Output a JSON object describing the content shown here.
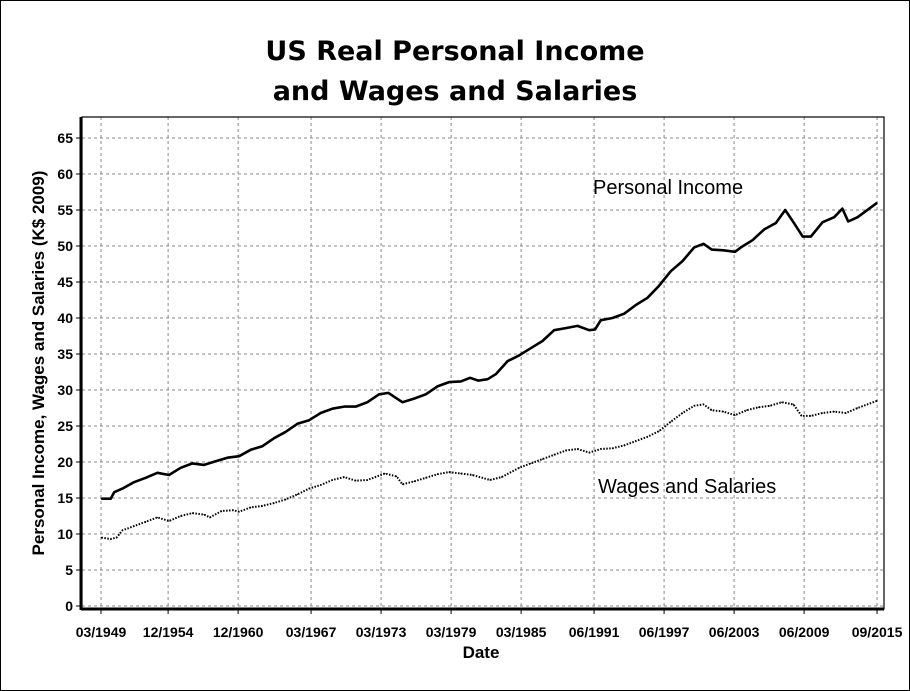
{
  "chart_data": {
    "type": "line",
    "title": [
      "US Real Personal Income",
      "and Wages and Salaries"
    ],
    "xlabel": "Date",
    "ylabel": "Personal Income, Wages and Salaries (K$ 2009)",
    "ylim": [
      0,
      65
    ],
    "xlim": [
      1949.17,
      2015.67
    ],
    "grid": true,
    "yticks": [
      0,
      5,
      10,
      15,
      20,
      25,
      30,
      35,
      40,
      45,
      50,
      55,
      60,
      65
    ],
    "xticks": [
      {
        "label": "03/1949",
        "t": 1949.17
      },
      {
        "label": "12/1954",
        "t": 1954.92
      },
      {
        "label": "12/1960",
        "t": 1960.92
      },
      {
        "label": "03/1967",
        "t": 1967.17
      },
      {
        "label": "03/1973",
        "t": 1973.17
      },
      {
        "label": "03/1979",
        "t": 1979.17
      },
      {
        "label": "03/1985",
        "t": 1985.17
      },
      {
        "label": "06/1991",
        "t": 1991.42
      },
      {
        "label": "06/1997",
        "t": 1997.42
      },
      {
        "label": "06/2003",
        "t": 2003.42
      },
      {
        "label": "06/2009",
        "t": 2009.42
      },
      {
        "label": "09/2015",
        "t": 2015.67
      }
    ],
    "series": [
      {
        "name": "Personal Income",
        "style": "solid",
        "x": [
          1949.2,
          1950,
          1950.3,
          1951,
          1952,
          1953,
          1954,
          1955,
          1956,
          1957,
          1958,
          1959,
          1960,
          1961,
          1962,
          1963,
          1964,
          1965,
          1966,
          1967,
          1968,
          1969,
          1970,
          1971,
          1972,
          1973,
          1973.8,
          1975,
          1976,
          1977,
          1978,
          1979,
          1980,
          1980.8,
          1981.5,
          1982.3,
          1983,
          1984,
          1985,
          1986,
          1987,
          1988,
          1989,
          1990,
          1991,
          1991.5,
          1992,
          1993,
          1994,
          1995,
          1996,
          1997,
          1998,
          1999,
          2000,
          2000.8,
          2001.5,
          2002.5,
          2003.5,
          2004,
          2005,
          2006,
          2007,
          2007.8,
          2008.5,
          2009.3,
          2010,
          2011,
          2012,
          2012.7,
          2013.2,
          2014,
          2015.67
        ],
        "y": [
          14.9,
          14.9,
          15.8,
          16.3,
          17.2,
          17.8,
          18.5,
          18.2,
          19.2,
          19.8,
          19.6,
          20.1,
          20.6,
          20.8,
          21.7,
          22.2,
          23.3,
          24.2,
          25.3,
          25.8,
          26.8,
          27.4,
          27.7,
          27.7,
          28.3,
          29.4,
          29.6,
          28.3,
          28.8,
          29.4,
          30.5,
          31.1,
          31.2,
          31.7,
          31.3,
          31.5,
          32.2,
          34.0,
          34.8,
          35.8,
          36.8,
          38.3,
          38.6,
          38.9,
          38.3,
          38.4,
          39.7,
          40.0,
          40.6,
          41.8,
          42.8,
          44.5,
          46.5,
          47.9,
          49.8,
          50.3,
          49.5,
          49.4,
          49.2,
          49.8,
          50.8,
          52.3,
          53.2,
          55.0,
          53.3,
          51.3,
          51.3,
          53.3,
          54.0,
          55.2,
          53.4,
          54.0,
          56.0
        ]
      },
      {
        "name": "Wages and Salaries",
        "style": "dotted",
        "x": [
          1949.2,
          1950,
          1950.5,
          1951,
          1952,
          1953,
          1954,
          1955,
          1956,
          1957,
          1958,
          1958.5,
          1959.5,
          1960.5,
          1961,
          1962,
          1963,
          1964,
          1965,
          1966,
          1967,
          1968,
          1969,
          1970,
          1971,
          1972,
          1973.5,
          1974.5,
          1975,
          1976,
          1977,
          1978,
          1979,
          1980,
          1981,
          1982.5,
          1983.5,
          1985,
          1986,
          1987,
          1988,
          1989,
          1990,
          1991,
          1992,
          1993,
          1994,
          1995,
          1996,
          1997,
          1998,
          1999,
          2000,
          2000.8,
          2001.5,
          2002.5,
          2003.5,
          2004.5,
          2005.5,
          2006.5,
          2007.5,
          2008.5,
          2009.2,
          2010,
          2011,
          2012,
          2013,
          2014,
          2015.67
        ],
        "y": [
          9.5,
          9.3,
          9.5,
          10.5,
          11.1,
          11.7,
          12.3,
          11.8,
          12.5,
          12.9,
          12.7,
          12.3,
          13.2,
          13.3,
          13.1,
          13.7,
          13.9,
          14.3,
          14.8,
          15.5,
          16.3,
          16.8,
          17.5,
          17.9,
          17.4,
          17.5,
          18.4,
          18.0,
          16.9,
          17.3,
          17.8,
          18.3,
          18.6,
          18.4,
          18.2,
          17.5,
          17.9,
          19.2,
          19.8,
          20.4,
          21.0,
          21.6,
          21.8,
          21.3,
          21.8,
          21.9,
          22.3,
          22.9,
          23.5,
          24.3,
          25.6,
          26.8,
          27.8,
          28.0,
          27.2,
          27.0,
          26.5,
          27.2,
          27.6,
          27.8,
          28.3,
          28.0,
          26.4,
          26.4,
          26.8,
          27.0,
          26.8,
          27.5,
          28.5
        ]
      }
    ],
    "annotations": [
      "Personal Income",
      "Wages and Salaries"
    ]
  }
}
